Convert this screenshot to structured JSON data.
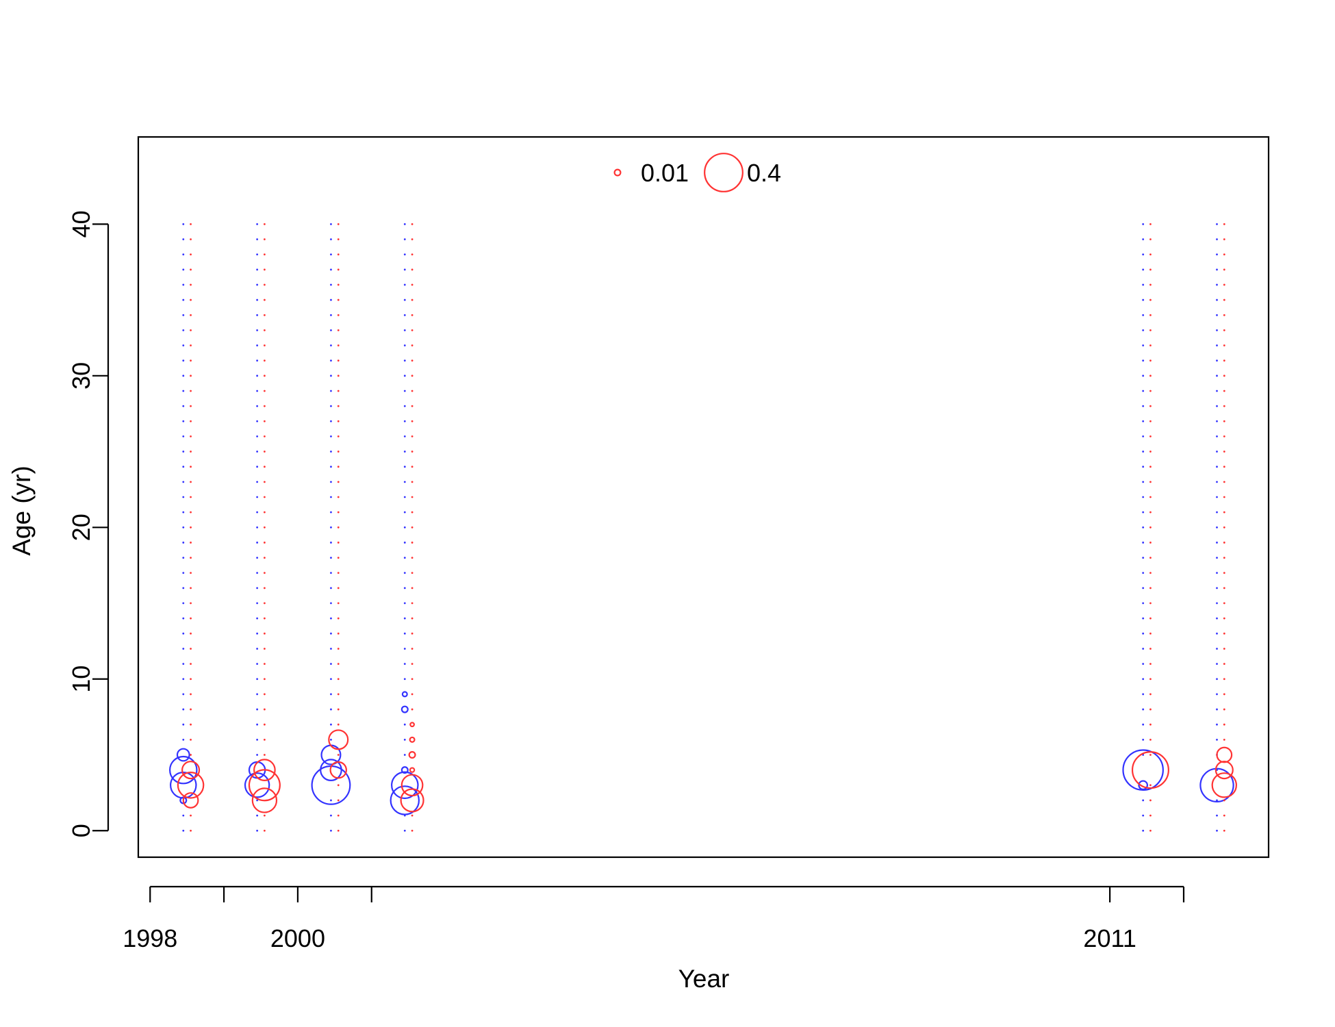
{
  "chart_data": {
    "type": "scatter",
    "title": "",
    "xlabel": "Year",
    "ylabel": "Age (yr)",
    "xlim": [
      1997.84,
      2013.15
    ],
    "ylim": [
      -1.75,
      45.75
    ],
    "x_ticks": [
      1998,
      1999,
      2000,
      2001,
      2011,
      2012
    ],
    "x_tick_labels": [
      {
        "value": 1998,
        "label": "1998"
      },
      {
        "value": 2000,
        "label": "2000"
      },
      {
        "value": 2011,
        "label": "2011"
      }
    ],
    "y_ticks": [
      {
        "value": 0,
        "label": "0"
      },
      {
        "value": 10,
        "label": "10"
      },
      {
        "value": 20,
        "label": "20"
      },
      {
        "value": 30,
        "label": "30"
      },
      {
        "value": 40,
        "label": "40"
      }
    ],
    "ages": [
      0,
      40
    ],
    "grid": false,
    "legend_position": "top-center",
    "legend": [
      {
        "label": "0.01",
        "value": 0.01
      },
      {
        "label": "0.4",
        "value": 0.4
      }
    ],
    "series": [
      {
        "color": "#3333ff",
        "offset_year": -0.05,
        "points": [
          {
            "year": 1998.5,
            "ages": [
              2,
              3,
              4,
              5
            ],
            "values": [
              0.01,
              0.18,
              0.2,
              0.04
            ]
          },
          {
            "year": 1999.5,
            "ages": [
              3,
              4
            ],
            "values": [
              0.16,
              0.07
            ]
          },
          {
            "year": 2000.5,
            "ages": [
              3,
              4,
              5
            ],
            "values": [
              0.4,
              0.12,
              0.1
            ]
          },
          {
            "year": 2001.5,
            "ages": [
              2,
              3,
              4,
              8,
              9
            ],
            "values": [
              0.22,
              0.19,
              0.01,
              0.01,
              0.006
            ]
          },
          {
            "year": 2011.5,
            "ages": [
              3,
              4
            ],
            "values": [
              0.02,
              0.44
            ]
          },
          {
            "year": 2012.5,
            "ages": [
              3
            ],
            "values": [
              0.3
            ]
          }
        ]
      },
      {
        "color": "#ff3333",
        "offset_year": 0.05,
        "points": [
          {
            "year": 1998.5,
            "ages": [
              2,
              3,
              4
            ],
            "values": [
              0.06,
              0.18,
              0.08
            ]
          },
          {
            "year": 1999.5,
            "ages": [
              2,
              3,
              4
            ],
            "values": [
              0.16,
              0.26,
              0.12
            ]
          },
          {
            "year": 2000.5,
            "ages": [
              4,
              6
            ],
            "values": [
              0.07,
              0.1
            ]
          },
          {
            "year": 2001.5,
            "ages": [
              2,
              3,
              4,
              5,
              6,
              7
            ],
            "values": [
              0.14,
              0.12,
              0.005,
              0.01,
              0.006,
              0.004
            ]
          },
          {
            "year": 2011.5,
            "ages": [
              4
            ],
            "values": [
              0.36
            ]
          },
          {
            "year": 2012.5,
            "ages": [
              3,
              4,
              5
            ],
            "values": [
              0.16,
              0.08,
              0.06
            ]
          }
        ]
      }
    ]
  }
}
